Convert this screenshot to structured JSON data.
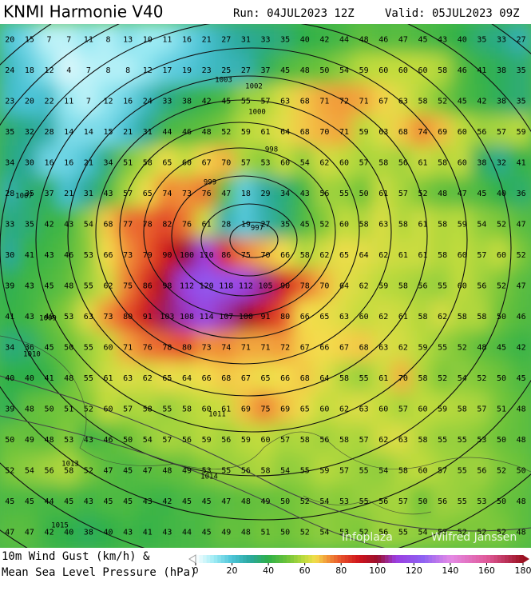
{
  "header": {
    "title": "KNMI Harmonie V40",
    "run": "Run: 04JUL2023 12Z",
    "valid": "Valid: 05JUL2023 09Z"
  },
  "map": {
    "gusts": [
      [
        20,
        15,
        7,
        7,
        11,
        8,
        13,
        10,
        11,
        16,
        21,
        27,
        31,
        33,
        35,
        40,
        42,
        44,
        48,
        46,
        47,
        45,
        43,
        40,
        35,
        33,
        27
      ],
      [
        24,
        18,
        12,
        4,
        7,
        8,
        8,
        12,
        17,
        19,
        23,
        25,
        27,
        37,
        45,
        48,
        50,
        54,
        59,
        60,
        60,
        60,
        58,
        46,
        41,
        38,
        35
      ],
      [
        23,
        20,
        22,
        11,
        7,
        12,
        16,
        24,
        33,
        38,
        42,
        45,
        55,
        57,
        63,
        68,
        71,
        72,
        71,
        67,
        63,
        58,
        52,
        45,
        42,
        38,
        35
      ],
      [
        35,
        32,
        28,
        14,
        14,
        15,
        21,
        31,
        44,
        46,
        48,
        52,
        59,
        61,
        64,
        68,
        70,
        71,
        59,
        63,
        68,
        74,
        69,
        60,
        56,
        57,
        59
      ],
      [
        34,
        30,
        16,
        16,
        21,
        34,
        51,
        58,
        65,
        60,
        67,
        70,
        57,
        53,
        60,
        54,
        62,
        60,
        57,
        58,
        56,
        61,
        58,
        60,
        38,
        32,
        41
      ],
      [
        28,
        35,
        37,
        21,
        31,
        43,
        57,
        65,
        74,
        73,
        76,
        47,
        18,
        29,
        34,
        43,
        56,
        55,
        50,
        61,
        57,
        52,
        48,
        47,
        45,
        40,
        36
      ],
      [
        33,
        35,
        42,
        43,
        54,
        68,
        77,
        78,
        82,
        76,
        61,
        28,
        19,
        27,
        35,
        45,
        52,
        60,
        58,
        63,
        58,
        61,
        58,
        59,
        54,
        52,
        47
      ],
      [
        30,
        41,
        43,
        46,
        53,
        66,
        73,
        79,
        90,
        100,
        110,
        86,
        75,
        70,
        66,
        58,
        62,
        65,
        64,
        62,
        61,
        61,
        58,
        60,
        57,
        60,
        52
      ],
      [
        39,
        43,
        45,
        48,
        55,
        62,
        75,
        86,
        98,
        112,
        120,
        118,
        112,
        105,
        90,
        78,
        70,
        64,
        62,
        59,
        58,
        56,
        55,
        60,
        56,
        52,
        47
      ],
      [
        41,
        43,
        48,
        53,
        63,
        73,
        80,
        91,
        103,
        108,
        114,
        107,
        100,
        91,
        80,
        66,
        65,
        63,
        60,
        62,
        61,
        58,
        62,
        58,
        58,
        50,
        46
      ],
      [
        34,
        36,
        45,
        50,
        55,
        60,
        71,
        76,
        78,
        80,
        73,
        74,
        71,
        71,
        72,
        67,
        66,
        67,
        68,
        63,
        62,
        59,
        55,
        52,
        48,
        45,
        42
      ],
      [
        40,
        40,
        41,
        48,
        55,
        61,
        63,
        62,
        65,
        64,
        66,
        68,
        67,
        65,
        66,
        68,
        64,
        58,
        55,
        61,
        70,
        58,
        52,
        54,
        52,
        50,
        45
      ],
      [
        39,
        48,
        50,
        51,
        52,
        60,
        57,
        58,
        55,
        58,
        60,
        61,
        69,
        75,
        69,
        65,
        60,
        62,
        63,
        60,
        57,
        60,
        59,
        58,
        57,
        51,
        48
      ],
      [
        50,
        49,
        48,
        53,
        43,
        46,
        50,
        54,
        57,
        56,
        59,
        56,
        59,
        60,
        57,
        58,
        56,
        58,
        57,
        62,
        63,
        58,
        55,
        55,
        53,
        50,
        48
      ],
      [
        52,
        54,
        56,
        58,
        52,
        47,
        45,
        47,
        48,
        49,
        53,
        55,
        56,
        58,
        54,
        55,
        59,
        57,
        55,
        54,
        58,
        60,
        57,
        55,
        56,
        52,
        50
      ],
      [
        45,
        45,
        44,
        45,
        43,
        45,
        45,
        43,
        42,
        45,
        45,
        47,
        48,
        49,
        50,
        52,
        54,
        53,
        55,
        56,
        57,
        50,
        56,
        55,
        53,
        50,
        48
      ],
      [
        47,
        47,
        42,
        40,
        38,
        40,
        43,
        41,
        43,
        44,
        45,
        49,
        48,
        51,
        50,
        52,
        54,
        53,
        52,
        56,
        55,
        54,
        53,
        52,
        52,
        52,
        48
      ]
    ],
    "isobar_labels": [
      "1007",
      "1003",
      "1002",
      "1000",
      "998",
      "999",
      "997",
      "1009",
      "1010",
      "1011",
      "1013",
      "1014",
      "1015"
    ],
    "credits": [
      "Infoplaza",
      "Wilfred Janssen"
    ]
  },
  "footer": {
    "line1": "10m Wind Gust (km/h) &",
    "line2": "Mean Sea Level Pressure (hPa)"
  },
  "colorbar": {
    "range": [
      0,
      180
    ],
    "ticks": [
      0,
      20,
      40,
      60,
      80,
      100,
      120,
      140,
      160,
      180
    ],
    "color_stops": [
      [
        0,
        "#ffffff"
      ],
      [
        10,
        "#9fecf5"
      ],
      [
        20,
        "#4cc4d8"
      ],
      [
        30,
        "#2aa89e"
      ],
      [
        40,
        "#2fb04a"
      ],
      [
        50,
        "#6cc33a"
      ],
      [
        60,
        "#c2dc3e"
      ],
      [
        66,
        "#f4dd4c"
      ],
      [
        72,
        "#f29a3a"
      ],
      [
        80,
        "#e6502a"
      ],
      [
        90,
        "#cf141c"
      ],
      [
        100,
        "#9a0f2e"
      ],
      [
        110,
        "#9b3ee0"
      ],
      [
        125,
        "#8e62f2"
      ],
      [
        140,
        "#e48ae6"
      ],
      [
        160,
        "#e05a9a"
      ],
      [
        180,
        "#9a1020"
      ]
    ]
  }
}
